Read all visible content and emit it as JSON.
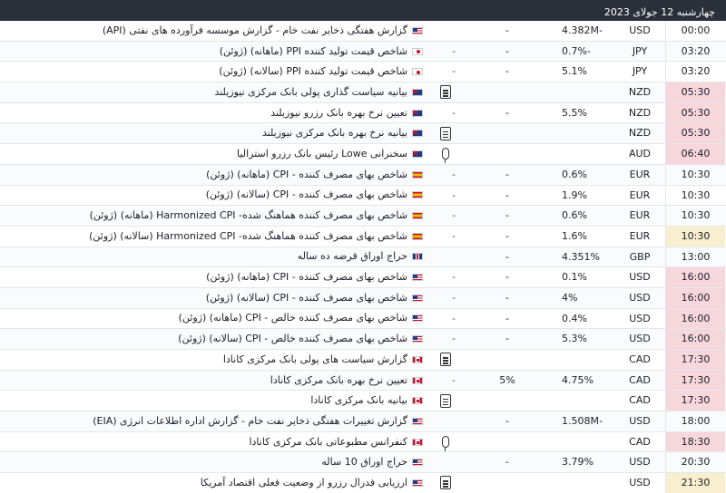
{
  "header": {
    "date": "چهارشنبه 12 جولای 2023"
  },
  "rows": [
    {
      "time": "00:00",
      "cur": "USD",
      "forecast": "4.382M-",
      "actual": "-",
      "title": "گزارش هفتگی ذخایر نفت خام - گزارش موسسه فرآورده های نفتی (API)",
      "flag": "us",
      "icon": ""
    },
    {
      "time": "03:20",
      "cur": "JPY",
      "forecast": "0.7%-",
      "actual": "-",
      "prev": "-",
      "title": "شاخص قیمت تولید کننده PPI (ماهانه) (ژوئن)",
      "flag": "jp",
      "icon": ""
    },
    {
      "time": "03:20",
      "cur": "JPY",
      "forecast": "5.1%",
      "actual": "-",
      "prev": "-",
      "title": "شاخص قیمت تولید کننده PPI (سالانه) (ژوئن)",
      "flag": "jp",
      "icon": ""
    },
    {
      "time": "05:30",
      "cur": "NZD",
      "forecast": "",
      "actual": "",
      "title": "بیانیه سیاست گذاری پولی بانک مرکزی نیوزیلند",
      "flag": "nz",
      "icon": "doc"
    },
    {
      "time": "05:30",
      "cur": "NZD",
      "forecast": "5.5%",
      "actual": "-",
      "prev": "-",
      "title": "تعیین نرخ بهره بانک رزرو نیوزیلند",
      "flag": "nz",
      "icon": ""
    },
    {
      "time": "05:30",
      "cur": "NZD",
      "forecast": "",
      "actual": "",
      "title": "بیانیه نرخ بهره بانک مرکزی نیوزیلند",
      "flag": "nz",
      "icon": "doc"
    },
    {
      "time": "06:40",
      "cur": "AUD",
      "forecast": "",
      "actual": "",
      "title": "سخنرانی Lowe رئیس بانک رزرو استرالیا",
      "flag": "au",
      "icon": "mic"
    },
    {
      "time": "10:30",
      "cur": "EUR",
      "forecast": "0.6%",
      "actual": "-",
      "prev": "-",
      "title": "شاخص بهای مصرف کننده - CPI (ماهانه) (ژوئن)",
      "flag": "es",
      "icon": ""
    },
    {
      "time": "10:30",
      "cur": "EUR",
      "forecast": "1.9%",
      "actual": "-",
      "prev": "-",
      "title": "شاخص بهای مصرف کننده - CPI (سالانه) (ژوئن)",
      "flag": "es",
      "icon": ""
    },
    {
      "time": "10:30",
      "cur": "EUR",
      "forecast": "0.6%",
      "actual": "-",
      "prev": "-",
      "title": "شاخص بهای مصرف کننده هماهنگ شده- Harmonized CPI (ماهانه) (ژوئن)",
      "flag": "es",
      "icon": ""
    },
    {
      "time": "10:30",
      "cur": "EUR",
      "forecast": "1.6%",
      "actual": "-",
      "prev": "-",
      "title": "شاخص بهای مصرف کننده هماهنگ شده- Harmonized CPI (سالانه) (ژوئن)",
      "flag": "es",
      "icon": ""
    },
    {
      "time": "13:00",
      "cur": "GBP",
      "forecast": "4.351%",
      "actual": "-",
      "title": "حراج اوراق قرضه ده ساله",
      "flag": "gb",
      "icon": ""
    },
    {
      "time": "16:00",
      "cur": "USD",
      "forecast": "0.1%",
      "actual": "-",
      "prev": "-",
      "title": "شاخص بهای مصرف کننده - CPI (ماهانه) (ژوئن)",
      "flag": "us",
      "icon": ""
    },
    {
      "time": "16:00",
      "cur": "USD",
      "forecast": "4%",
      "actual": "-",
      "prev": "-",
      "title": "شاخص بهای مصرف کننده - CPI (سالانه) (ژوئن)",
      "flag": "us",
      "icon": ""
    },
    {
      "time": "16:00",
      "cur": "USD",
      "forecast": "0.4%",
      "actual": "-",
      "prev": "-",
      "title": "شاخص بهای مصرف کننده خالص - CPI (ماهانه) (ژوئن)",
      "flag": "us",
      "icon": ""
    },
    {
      "time": "16:00",
      "cur": "USD",
      "forecast": "5.3%",
      "actual": "-",
      "prev": "-",
      "title": "شاخص بهای مصرف کننده خالص - CPI (سالانه) (ژوئن)",
      "flag": "us",
      "icon": ""
    },
    {
      "time": "17:30",
      "cur": "CAD",
      "forecast": "",
      "actual": "",
      "title": "گزارش سیاست های پولی بانک مرکزی کانادا",
      "flag": "ca",
      "icon": "doc"
    },
    {
      "time": "17:30",
      "cur": "CAD",
      "forecast": "4.75%",
      "actual": "5%",
      "prev": "-",
      "title": "تعیین نرخ بهره بانک مرکزی کانادا",
      "flag": "ca",
      "icon": ""
    },
    {
      "time": "17:30",
      "cur": "CAD",
      "forecast": "",
      "actual": "",
      "title": "بیانیه بانک مرکزی کانادا",
      "flag": "ca",
      "icon": "doc"
    },
    {
      "time": "18:00",
      "cur": "USD",
      "forecast": "1.508M-",
      "actual": "-",
      "title": "گزارش تغییرات هفتگی ذخایر نفت خام - گزارش اداره اطلاعات انرژی (EIA)",
      "flag": "us",
      "icon": ""
    },
    {
      "time": "18:30",
      "cur": "CAD",
      "forecast": "",
      "actual": "",
      "title": "کنفرانس مطبوعاتی بانک مرکزی کانادا",
      "flag": "ca",
      "icon": "mic"
    },
    {
      "time": "20:30",
      "cur": "USD",
      "forecast": "3.79%",
      "actual": "-",
      "title": "حراج اوراق 10 ساله",
      "flag": "us",
      "icon": ""
    },
    {
      "time": "21:30",
      "cur": "USD",
      "forecast": "",
      "actual": "",
      "title": "ارزیابی فدرال رزرو از وضعیت فعلی اقتصاد آمریکا",
      "flag": "us",
      "icon": "doc"
    }
  ],
  "highlights": {
    "red": [
      "05:30",
      "06:40",
      "16:00",
      "17:30",
      "18:30"
    ],
    "yellow": [
      "21:30"
    ],
    "yellow_index": [
      10,
      22
    ]
  }
}
